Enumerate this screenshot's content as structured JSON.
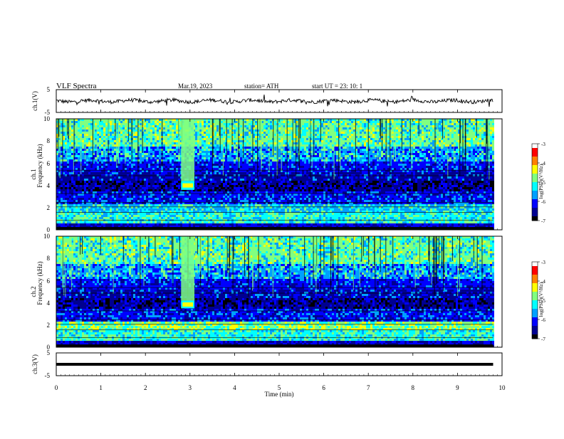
{
  "header": {
    "title": "VLF  Spectra",
    "date": "Mar.19, 2023",
    "station": "station= ATH",
    "start_ut": "start  UT  =    23: 10: 1"
  },
  "chart_data": {
    "type": "heatmap",
    "xlabel": "Time  (min)",
    "xlim": [
      0,
      10
    ],
    "x_ticks": [
      "0",
      "1",
      "2",
      "3",
      "4",
      "5",
      "6",
      "7",
      "8",
      "9",
      "10"
    ],
    "panels": [
      {
        "id": "ch1-waveform",
        "type": "line",
        "ylabel": "ch.1(V)",
        "ylim": [
          -5,
          5
        ],
        "y_ticks": [
          "5",
          "-5"
        ],
        "trace_level": 0,
        "trace_end_min": 9.8
      },
      {
        "id": "ch1-spectrogram",
        "type": "heatmap",
        "ylabel_top": "ch.1",
        "ylabel": "Frequency  (kHz)",
        "ylim": [
          0,
          10
        ],
        "y_ticks": [
          "0",
          "2",
          "4",
          "6",
          "8",
          "10"
        ],
        "data_end_min": 9.8,
        "burst": {
          "t_start": 2.8,
          "t_end": 3.1,
          "f_low": 3.6,
          "f_high": 4.4
        },
        "colorbar": {
          "label": "log(PSD)(V²/Hz)",
          "range": [
            -7,
            -3
          ],
          "ticks": [
            "-3",
            "-4",
            "-5",
            "-6",
            "-7"
          ]
        }
      },
      {
        "id": "ch2-spectrogram",
        "type": "heatmap",
        "ylabel_top": "ch.2",
        "ylabel": "Frequency  (kHz)",
        "ylim": [
          0,
          10
        ],
        "y_ticks": [
          "0",
          "2",
          "4",
          "6",
          "8",
          "10"
        ],
        "data_end_min": 9.8,
        "burst": {
          "t_start": 2.8,
          "t_end": 3.1,
          "f_low": 3.5,
          "f_high": 4.2
        },
        "colorbar": {
          "label": "log(PSD)(V²/Hz)",
          "range": [
            -7,
            -3
          ],
          "ticks": [
            "-3",
            "-4",
            "-5",
            "-6",
            "-7"
          ]
        }
      },
      {
        "id": "ch3-waveform",
        "type": "line",
        "ylabel": "ch.3(V)",
        "ylim": [
          -5,
          5
        ],
        "y_ticks": [
          "5",
          "-5"
        ],
        "trace_level": 0,
        "trace_end_min": 9.8
      }
    ]
  },
  "colors": {
    "axis": "#000000",
    "colormap": [
      "#000000",
      "#000090",
      "#0000ff",
      "#00a0ff",
      "#00ffff",
      "#80ff80",
      "#ffff00",
      "#ff8000",
      "#ff0000",
      "#ffffff"
    ]
  }
}
